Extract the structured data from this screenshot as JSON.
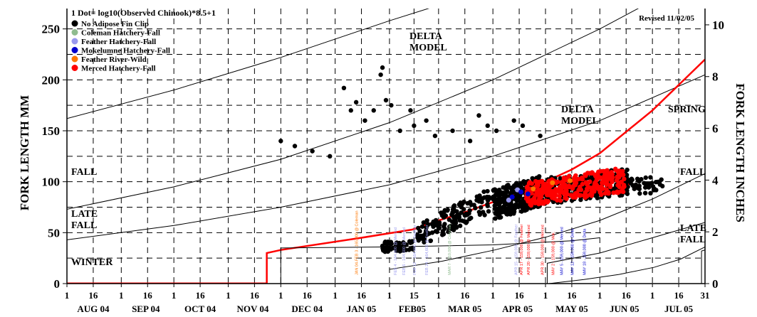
{
  "chart_data": {
    "type": "scatter",
    "title": "1 Dot= log10(Observed Chinook)*8.5+1",
    "revised": "Revised 11/02/05",
    "ylabel_left": "FORK LENGTH MM",
    "ylabel_right": "FORK LENGTH INCHES",
    "ylim": [
      0,
      270
    ],
    "y_ticks_left": [
      "0",
      "50",
      "100",
      "150",
      "200",
      "250"
    ],
    "y_ticks_left_values": [
      0,
      50,
      100,
      150,
      200,
      250
    ],
    "y_ticks_right": [
      "0",
      "2",
      "4",
      "6",
      "8",
      "10"
    ],
    "y_ticks_right_values_in": [
      0,
      2,
      4,
      6,
      8,
      10
    ],
    "x_day_ticks": [
      "1",
      "16",
      "1",
      "16",
      "1",
      "16",
      "1",
      "16",
      "1",
      "16",
      "1",
      "16",
      "1",
      "15",
      "1",
      "16",
      "1",
      "16",
      "1",
      "16",
      "1",
      "16",
      "1",
      "16",
      "31"
    ],
    "x_day_ticks_days": [
      0,
      15,
      31,
      46,
      61,
      76,
      92,
      107,
      122,
      137,
      153,
      168,
      184,
      198,
      212,
      227,
      243,
      258,
      273,
      288,
      304,
      319,
      334,
      349,
      364
    ],
    "x_months": [
      "AUG 04",
      "SEP 04",
      "OCT 04",
      "NOV 04",
      "DEC 04",
      "JAN 05",
      "FEB05",
      "MAR 05",
      "APR 05",
      "MAY 05",
      "JUN 05",
      "JUL 05"
    ],
    "x_months_days": [
      15,
      45,
      76,
      106,
      137,
      168,
      197,
      227,
      257,
      288,
      318,
      349
    ],
    "legend": [
      {
        "label": "No Adipose Fin Clip",
        "color": "#000000"
      },
      {
        "label": "Coleman Hatchery-Fall",
        "color": "#8fbc8f"
      },
      {
        "label": "Feather Hatchery-Fall",
        "color": "#9999ee"
      },
      {
        "label": "Mokelumne Hatchery-Fall",
        "color": "#0000cc"
      },
      {
        "label": "Feather River-Wild",
        "color": "#ff7700"
      },
      {
        "label": "Merced Hatchery-Fall",
        "color": "#ff0000"
      }
    ],
    "region_labels": [
      "FALL",
      "LATE\nFALL",
      "WINTER",
      "DELTA\nMODEL",
      "DELTA\nMODEL",
      "SPRING",
      "FALL",
      "LATE\nFALL"
    ],
    "model_curves": [
      {
        "x": [
          0,
          61,
          122,
          184,
          243,
          304,
          364
        ],
        "y": [
          162,
          190,
          222,
          258,
          290,
          330,
          370
        ]
      },
      {
        "x": [
          0,
          61,
          122,
          184,
          243,
          304,
          364
        ],
        "y": [
          73,
          95,
          122,
          158,
          200,
          250,
          305
        ]
      },
      {
        "x": [
          0,
          61,
          122,
          184,
          243,
          304,
          364
        ],
        "y": [
          43,
          57,
          75,
          97,
          125,
          160,
          205
        ]
      },
      {
        "x": [
          184,
          214,
          244,
          274,
          304,
          334,
          364
        ],
        "y": [
          14,
          22,
          33,
          46,
          62,
          83,
          108
        ]
      },
      {
        "x": [
          275,
          295,
          315,
          335,
          350,
          364
        ],
        "y": [
          0,
          4,
          9,
          16,
          24,
          36
        ]
      }
    ],
    "steps": [
      {
        "x": [
          110,
          114,
          114,
          122,
          168,
          197,
          212,
          227,
          243,
          258,
          273,
          288,
          304,
          334,
          364
        ],
        "y": [
          0,
          0,
          30,
          33,
          45,
          53,
          62,
          70,
          80,
          90,
          100,
          112,
          128,
          170,
          220
        ],
        "color": "#ff0000"
      },
      {
        "x": [
          120,
          122,
          122,
          184,
          243,
          288,
          304
        ],
        "y": [
          0,
          0,
          35,
          36,
          38,
          42,
          45
        ],
        "color": "#000000"
      },
      {
        "x": [
          272,
          274,
          274,
          304,
          334,
          364
        ],
        "y": [
          0,
          0,
          20,
          30,
          45,
          60
        ],
        "color": "#000000"
      },
      {
        "x": [
          360,
          362,
          362,
          364
        ],
        "y": [
          0,
          0,
          32,
          33
        ],
        "color": "#000000"
      }
    ],
    "clusters": [
      {
        "color": "#000000",
        "points": [
          [
            122,
            140
          ],
          [
            130,
            135
          ],
          [
            140,
            130
          ],
          [
            150,
            125
          ],
          [
            158,
            192
          ],
          [
            162,
            170
          ],
          [
            165,
            178
          ],
          [
            170,
            160
          ],
          [
            175,
            170
          ],
          [
            179,
            205
          ],
          [
            180,
            212
          ],
          [
            182,
            180
          ],
          [
            185,
            175
          ],
          [
            190,
            150
          ],
          [
            196,
            170
          ],
          [
            198,
            155
          ],
          [
            205,
            160
          ],
          [
            210,
            145
          ],
          [
            220,
            150
          ],
          [
            230,
            140
          ],
          [
            235,
            165
          ],
          [
            240,
            155
          ],
          [
            245,
            150
          ],
          [
            255,
            160
          ],
          [
            260,
            155
          ],
          [
            270,
            145
          ]
        ]
      },
      {
        "color": "#000000",
        "points": [
          [
            180,
            37
          ],
          [
            184,
            35
          ],
          [
            188,
            38
          ],
          [
            192,
            36
          ],
          [
            196,
            40
          ],
          [
            200,
            45
          ],
          [
            205,
            55
          ],
          [
            210,
            60
          ],
          [
            215,
            65
          ],
          [
            220,
            70
          ],
          [
            225,
            75
          ],
          [
            230,
            80
          ],
          [
            235,
            85
          ],
          [
            240,
            82
          ],
          [
            245,
            90
          ],
          [
            250,
            88
          ],
          [
            255,
            95
          ],
          [
            260,
            90
          ],
          [
            265,
            85
          ],
          [
            270,
            100
          ],
          [
            275,
            95
          ],
          [
            280,
            98
          ],
          [
            285,
            102
          ],
          [
            290,
            96
          ],
          [
            295,
            100
          ],
          [
            300,
            104
          ],
          [
            305,
            98
          ],
          [
            310,
            100
          ],
          [
            315,
            103
          ],
          [
            320,
            95
          ]
        ]
      },
      {
        "color": "#ff0000",
        "points": [
          [
            262,
            85
          ],
          [
            268,
            90
          ],
          [
            272,
            95
          ],
          [
            276,
            92
          ],
          [
            280,
            100
          ],
          [
            284,
            98
          ],
          [
            288,
            102
          ],
          [
            292,
            96
          ],
          [
            296,
            104
          ],
          [
            300,
            100
          ],
          [
            304,
            110
          ],
          [
            308,
            98
          ],
          [
            312,
            104
          ],
          [
            316,
            102
          ],
          [
            320,
            98
          ]
        ]
      },
      {
        "color": "#ff7700",
        "points": [
          [
            266,
            93
          ],
          [
            277,
            99
          ],
          [
            287,
            101
          ]
        ]
      },
      {
        "color": "#9999ee",
        "points": [
          [
            252,
            82
          ],
          [
            257,
            92
          ]
        ]
      },
      {
        "color": "#0000cc",
        "points": [
          [
            254,
            85
          ],
          [
            259,
            90
          ],
          [
            263,
            88
          ]
        ]
      }
    ],
    "release_labels": [
      {
        "text": "JAN 04-FEB 3 - 165,000 @ Coleman",
        "x": 166,
        "color": "#ff7700"
      },
      {
        "text": "FEB 4 - 164,900 @ Merced",
        "x": 188,
        "color": "#9999ee"
      },
      {
        "text": "FEB 6 - 164,600 @ Merced",
        "x": 193,
        "color": "#9999ee"
      },
      {
        "text": "FEB 12 - 164,600 @ Feather",
        "x": 199,
        "color": "#9999ee"
      },
      {
        "text": "FEB 24 - 164,600 @ Feather",
        "x": 206,
        "color": "#9999ee"
      },
      {
        "text": "MAR 7 - 310,000 @ Coleman",
        "x": 219,
        "color": "#8fbc8f"
      },
      {
        "text": "APR 15 - 159,000 @ Feather",
        "x": 257,
        "color": "#9999ee"
      },
      {
        "text": "APR 17 - 159,000 @ Feather",
        "x": 260,
        "color": "#ff0000"
      },
      {
        "text": "APR 20 - 159,000 @ Merced",
        "x": 264,
        "color": "#ff0000"
      },
      {
        "text": "APR 30 - 159,000 @ Merced",
        "x": 272,
        "color": "#ff0000"
      },
      {
        "text": "MAY 2 - 159,000 @ Mok.",
        "x": 278,
        "color": "#ff0000"
      },
      {
        "text": "MAY 5 - 159,000 @ Merced",
        "x": 283,
        "color": "#0000cc"
      },
      {
        "text": "MAY 12 - 159,000 @ Delta",
        "x": 289,
        "color": "#0000cc"
      },
      {
        "text": "MAY 18 - 159,000 @ Delta",
        "x": 296,
        "color": "#0000cc"
      }
    ]
  }
}
